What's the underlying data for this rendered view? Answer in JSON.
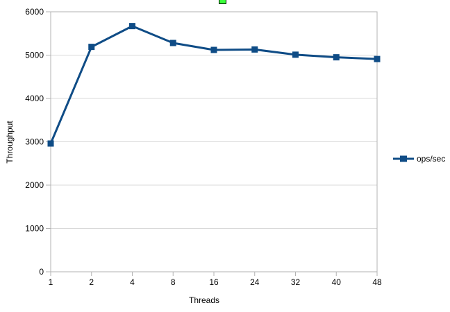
{
  "chart_data": {
    "type": "line",
    "title": "",
    "xlabel": "Threads",
    "ylabel": "Throughput",
    "categories": [
      "1",
      "2",
      "4",
      "8",
      "16",
      "24",
      "32",
      "40",
      "48"
    ],
    "series": [
      {
        "name": "ops/sec",
        "values": [
          2960,
          5190,
          5670,
          5280,
          5120,
          5130,
          5010,
          4950,
          4910
        ],
        "marker": "square"
      }
    ],
    "ylim": [
      0,
      6000
    ],
    "yticks": [
      0,
      1000,
      2000,
      3000,
      4000,
      5000,
      6000
    ],
    "grid": "horizontal-only",
    "legend_position": "right-middle"
  },
  "colors": {
    "series": "#0f4c86",
    "gridline": "#d9d9d9",
    "axis": "#b3b3b3",
    "text": "#000000",
    "background": "#ffffff",
    "selection_handle": "#3bff3b"
  },
  "legend": {
    "label": "ops/sec",
    "marker_icon": "line-with-square-marker"
  },
  "selection": {
    "handle_visible": true
  }
}
